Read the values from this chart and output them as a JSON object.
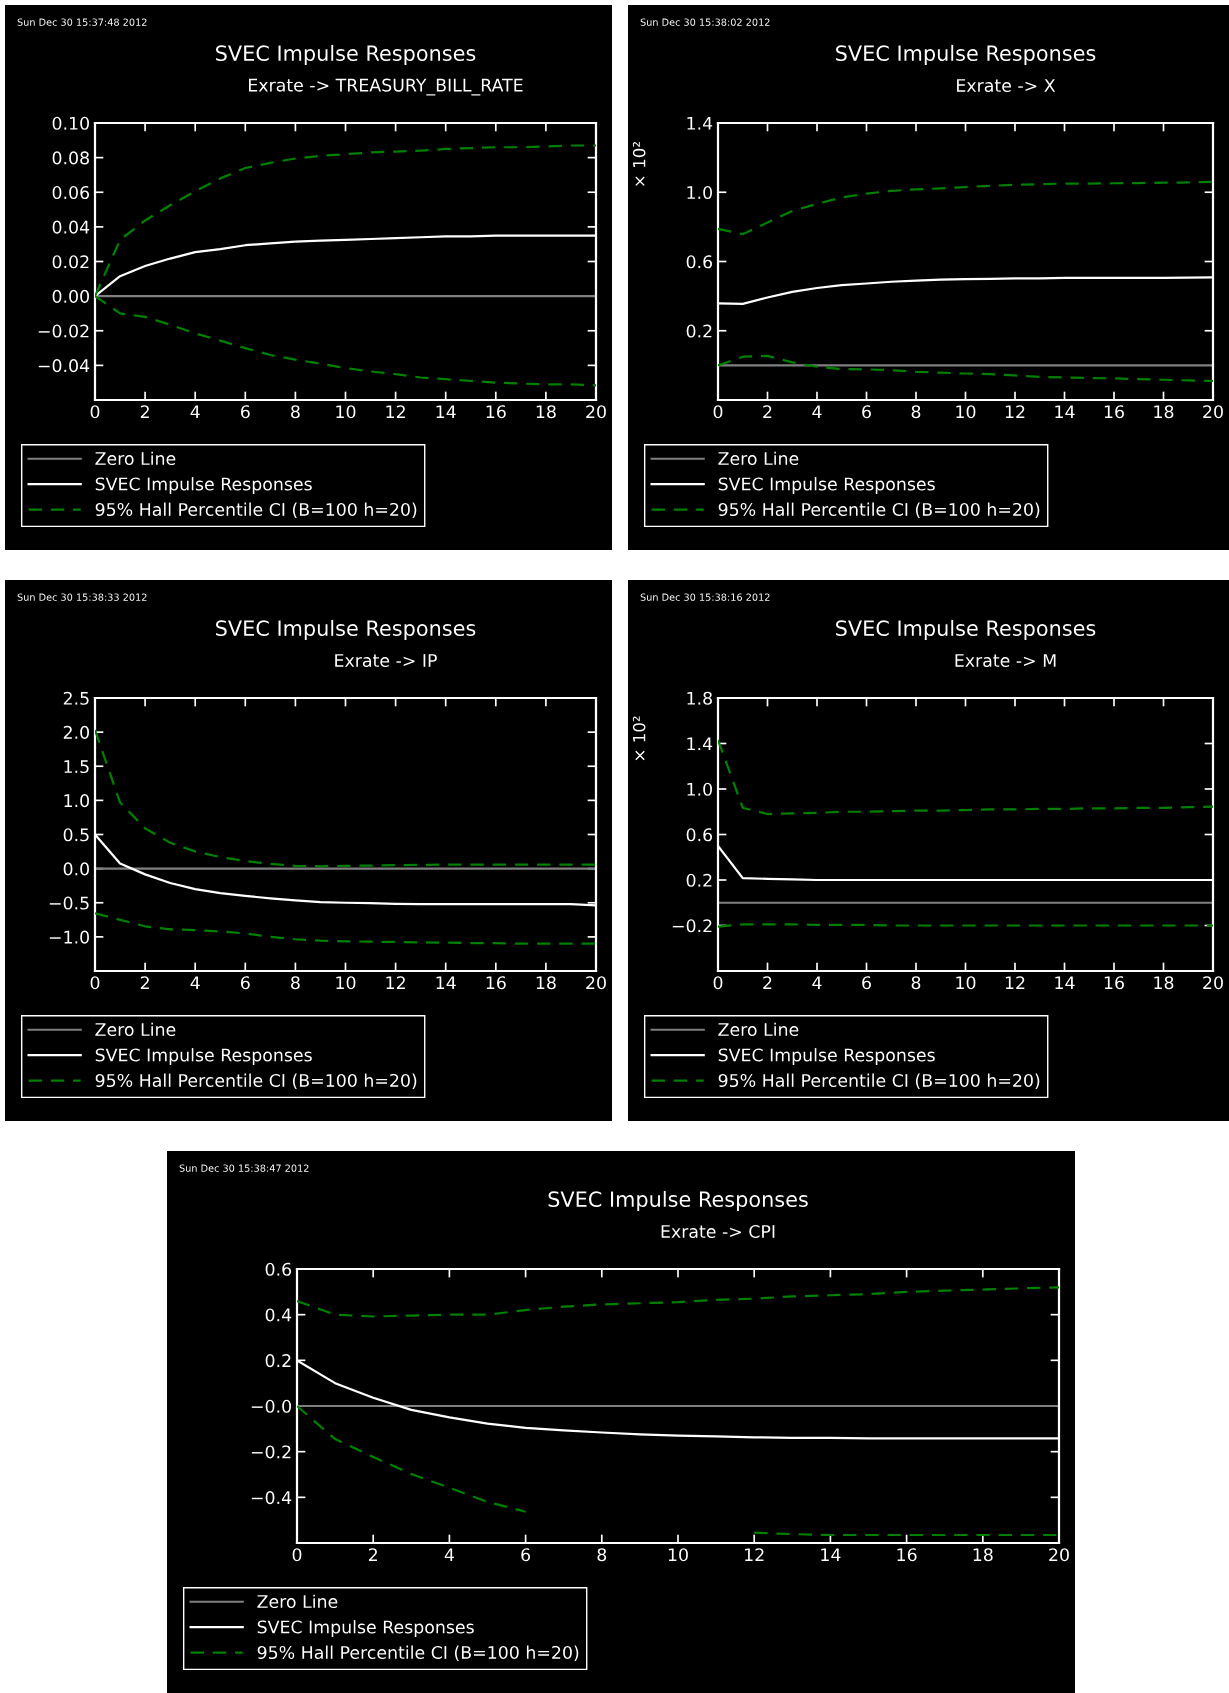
{
  "chart_data": [
    {
      "type": "line",
      "title": "SVEC Impulse Responses",
      "subtitle": "Exrate -> TREASURY_BILL_RATE",
      "annotations": [
        "Sun Dec 30 15:37:48 2012"
      ],
      "x": [
        0,
        1,
        2,
        3,
        4,
        5,
        6,
        7,
        8,
        9,
        10,
        11,
        12,
        13,
        14,
        15,
        16,
        17,
        18,
        19,
        20
      ],
      "series": [
        {
          "name": "SVEC Impulse Responses",
          "color": "#ffffff",
          "line_style": "solid",
          "values": [
            0,
            0.0115,
            0.0174,
            0.0217,
            0.0254,
            0.0272,
            0.0294,
            0.0305,
            0.0315,
            0.032,
            0.0325,
            0.033,
            0.0335,
            0.034,
            0.0345,
            0.0345,
            0.035,
            0.035,
            0.035,
            0.035,
            0.035
          ]
        },
        {
          "name": "95% Hall Percentile CI (B=100 h=20)",
          "color": "#008000",
          "line_style": "dashed",
          "values": [
            0,
            0.0325,
            0.0437,
            0.0525,
            0.0606,
            0.068,
            0.074,
            0.077,
            0.0795,
            0.081,
            0.082,
            0.083,
            0.0835,
            0.084,
            0.085,
            0.0855,
            0.086,
            0.086,
            0.0865,
            0.087,
            0.087
          ]
        },
        {
          "color": "#008000",
          "line_style": "dashed",
          "values": [
            0,
            -0.01,
            -0.012,
            -0.0165,
            -0.0215,
            -0.0257,
            -0.03,
            -0.034,
            -0.0367,
            -0.039,
            -0.0415,
            -0.0435,
            -0.045,
            -0.047,
            -0.048,
            -0.049,
            -0.05,
            -0.0505,
            -0.051,
            -0.051,
            -0.0515
          ]
        }
      ],
      "ref_lines": [
        {
          "axis": "y",
          "value": 0,
          "label": "Zero Line",
          "color": "#808080",
          "line_style": "solid"
        }
      ],
      "xlim": [
        0,
        20
      ],
      "ylim": [
        -0.06,
        0.1
      ],
      "xticks": [
        0,
        2,
        4,
        6,
        8,
        10,
        12,
        14,
        16,
        18,
        20
      ],
      "yticks": [
        {
          "value": -0.04,
          "label": "−0.04"
        },
        {
          "value": -0.02,
          "label": "−0.02"
        },
        {
          "value": 0,
          "label": "0.00"
        },
        {
          "value": 0.02,
          "label": "0.02"
        },
        {
          "value": 0.04,
          "label": "0.04"
        },
        {
          "value": 0.06,
          "label": "0.06"
        },
        {
          "value": 0.08,
          "label": "0.08"
        },
        {
          "value": 0.1,
          "label": "0.10"
        }
      ],
      "legend": "bottom"
    },
    {
      "type": "line",
      "title": "SVEC Impulse Responses",
      "subtitle": "Exrate -> X",
      "ylabel": "× 10²",
      "annotations": [
        "Sun Dec 30 15:38:02 2012"
      ],
      "x": [
        0,
        1,
        2,
        3,
        4,
        5,
        6,
        7,
        8,
        9,
        10,
        11,
        12,
        13,
        14,
        15,
        16,
        17,
        18,
        19,
        20
      ],
      "series": [
        {
          "name": "SVEC Impulse Responses",
          "color": "#ffffff",
          "line_style": "solid",
          "values": [
            0.358,
            0.355,
            0.392,
            0.425,
            0.447,
            0.463,
            0.473,
            0.483,
            0.49,
            0.495,
            0.498,
            0.5,
            0.502,
            0.503,
            0.505,
            0.505,
            0.505,
            0.505,
            0.505,
            0.507,
            0.508
          ]
        },
        {
          "name": "95% Hall Percentile CI (B=100 h=20)",
          "color": "#008000",
          "line_style": "dashed",
          "values": [
            0.788,
            0.758,
            0.825,
            0.892,
            0.933,
            0.97,
            0.992,
            1.008,
            1.017,
            1.022,
            1.03,
            1.037,
            1.043,
            1.047,
            1.05,
            1.05,
            1.052,
            1.053,
            1.055,
            1.057,
            1.06
          ]
        },
        {
          "color": "#008000",
          "line_style": "dashed",
          "values": [
            0,
            0.05,
            0.055,
            0.017,
            -0.008,
            -0.022,
            -0.023,
            -0.028,
            -0.037,
            -0.042,
            -0.047,
            -0.05,
            -0.058,
            -0.067,
            -0.07,
            -0.073,
            -0.075,
            -0.08,
            -0.083,
            -0.087,
            -0.09
          ]
        }
      ],
      "ref_lines": [
        {
          "axis": "y",
          "value": 0,
          "label": "Zero Line",
          "color": "#808080",
          "line_style": "solid"
        }
      ],
      "xlim": [
        0,
        20
      ],
      "ylim": [
        -0.2,
        1.4
      ],
      "xticks": [
        0,
        2,
        4,
        6,
        8,
        10,
        12,
        14,
        16,
        18,
        20
      ],
      "yticks": [
        0.2,
        0.6,
        {
          "value": 1.0,
          "label": "1.0"
        },
        1.4
      ],
      "legend": "bottom"
    },
    {
      "type": "line",
      "title": "SVEC Impulse Responses",
      "subtitle": "Exrate -> IP",
      "annotations": [
        "Sun Dec 30 15:38:33 2012"
      ],
      "x": [
        0,
        1,
        2,
        3,
        4,
        5,
        6,
        7,
        8,
        9,
        10,
        11,
        12,
        13,
        14,
        15,
        16,
        17,
        18,
        19,
        20
      ],
      "series": [
        {
          "name": "SVEC Impulse Responses",
          "color": "#ffffff",
          "line_style": "solid",
          "values": [
            0.5,
            0.076,
            -0.084,
            -0.21,
            -0.3,
            -0.36,
            -0.4,
            -0.435,
            -0.465,
            -0.49,
            -0.5,
            -0.505,
            -0.515,
            -0.52,
            -0.52,
            -0.52,
            -0.52,
            -0.52,
            -0.52,
            -0.52,
            -0.54
          ]
        },
        {
          "name": "95% Hall Percentile CI (B=100 h=20)",
          "color": "#008000",
          "line_style": "dashed",
          "values": [
            2.03,
            0.97,
            0.59,
            0.38,
            0.25,
            0.17,
            0.11,
            0.07,
            0.04,
            0.035,
            0.04,
            0.045,
            0.05,
            0.055,
            0.06,
            0.06,
            0.06,
            0.06,
            0.06,
            0.06,
            0.06
          ]
        },
        {
          "color": "#008000",
          "line_style": "dashed",
          "values": [
            -0.655,
            -0.75,
            -0.845,
            -0.89,
            -0.9,
            -0.92,
            -0.95,
            -1.0,
            -1.035,
            -1.055,
            -1.065,
            -1.07,
            -1.075,
            -1.08,
            -1.085,
            -1.09,
            -1.09,
            -1.1,
            -1.1,
            -1.1,
            -1.1
          ]
        }
      ],
      "ref_lines": [
        {
          "axis": "y",
          "value": 0,
          "label": "Zero Line",
          "color": "#808080",
          "line_style": "solid"
        }
      ],
      "xlim": [
        0,
        20
      ],
      "ylim": [
        -1.5,
        2.5
      ],
      "xticks": [
        0,
        2,
        4,
        6,
        8,
        10,
        12,
        14,
        16,
        18,
        20
      ],
      "yticks": [
        {
          "value": -1.0,
          "label": "−1.0"
        },
        {
          "value": -0.5,
          "label": "−0.5"
        },
        {
          "value": 0,
          "label": "0.0"
        },
        0.5,
        {
          "value": 1.0,
          "label": "1.0"
        },
        1.5,
        {
          "value": 2.0,
          "label": "2.0"
        },
        2.5
      ],
      "legend": "bottom"
    },
    {
      "type": "line",
      "title": "SVEC Impulse Responses",
      "subtitle": "Exrate -> M",
      "ylabel": "× 10²",
      "annotations": [
        "Sun Dec 30 15:38:16 2012"
      ],
      "x": [
        0,
        1,
        2,
        3,
        4,
        5,
        6,
        7,
        8,
        9,
        10,
        11,
        12,
        13,
        14,
        15,
        16,
        17,
        18,
        19,
        20
      ],
      "series": [
        {
          "name": "SVEC Impulse Responses",
          "color": "#ffffff",
          "line_style": "solid",
          "values": [
            0.5,
            0.217,
            0.21,
            0.205,
            0.2,
            0.2,
            0.2,
            0.2,
            0.2,
            0.2,
            0.2,
            0.2,
            0.2,
            0.2,
            0.2,
            0.2,
            0.2,
            0.2,
            0.2,
            0.2,
            0.2
          ]
        },
        {
          "name": "95% Hall Percentile CI (B=100 h=20)",
          "color": "#008000",
          "line_style": "dashed",
          "values": [
            1.43,
            0.835,
            0.78,
            0.785,
            0.79,
            0.8,
            0.8,
            0.805,
            0.81,
            0.81,
            0.815,
            0.82,
            0.82,
            0.825,
            0.825,
            0.83,
            0.83,
            0.835,
            0.835,
            0.84,
            0.845
          ]
        },
        {
          "color": "#008000",
          "line_style": "dashed",
          "values": [
            -0.21,
            -0.19,
            -0.19,
            -0.19,
            -0.195,
            -0.195,
            -0.195,
            -0.2,
            -0.2,
            -0.2,
            -0.2,
            -0.2,
            -0.2,
            -0.2,
            -0.2,
            -0.2,
            -0.2,
            -0.2,
            -0.2,
            -0.2,
            -0.2
          ]
        }
      ],
      "ref_lines": [
        {
          "axis": "y",
          "value": 0,
          "label": "Zero Line",
          "color": "#808080",
          "line_style": "solid"
        }
      ],
      "xlim": [
        0,
        20
      ],
      "ylim": [
        -0.6,
        1.8
      ],
      "xticks": [
        0,
        2,
        4,
        6,
        8,
        10,
        12,
        14,
        16,
        18,
        20
      ],
      "yticks": [
        {
          "value": -0.2,
          "label": "−0.2"
        },
        0.2,
        0.6,
        {
          "value": 1.0,
          "label": "1.0"
        },
        1.4,
        1.8
      ],
      "legend": "bottom"
    },
    {
      "type": "line",
      "title": "SVEC Impulse Responses",
      "subtitle": "Exrate -> CPI",
      "annotations": [
        "Sun Dec 30 15:38:47 2012"
      ],
      "x": [
        0,
        1,
        2,
        3,
        4,
        5,
        6,
        7,
        8,
        9,
        10,
        11,
        12,
        13,
        14,
        15,
        16,
        17,
        18,
        19,
        20
      ],
      "series": [
        {
          "name": "SVEC Impulse Responses",
          "color": "#ffffff",
          "line_style": "solid",
          "values": [
            0.2,
            0.1,
            0.036,
            -0.017,
            -0.05,
            -0.077,
            -0.096,
            -0.107,
            -0.116,
            -0.124,
            -0.13,
            -0.133,
            -0.137,
            -0.14,
            -0.14,
            -0.142,
            -0.142,
            -0.142,
            -0.142,
            -0.142,
            -0.142
          ]
        },
        {
          "name": "95% Hall Percentile CI (B=100 h=20)",
          "color": "#008000",
          "line_style": "dashed",
          "values": [
            0.46,
            0.4,
            0.392,
            0.396,
            0.4,
            0.4,
            0.42,
            0.435,
            0.445,
            0.45,
            0.455,
            0.465,
            0.47,
            0.48,
            0.485,
            0.49,
            0.5,
            0.505,
            0.51,
            0.515,
            0.52
          ]
        },
        {
          "color": "#008000",
          "line_style": "dashed",
          "values": [
            0,
            -0.145,
            -0.223,
            -0.298,
            -0.358,
            -0.42,
            -0.463,
            null,
            null,
            null,
            null,
            null,
            -0.555,
            -0.561,
            -0.565,
            -0.565,
            -0.565,
            -0.565,
            -0.565,
            -0.565,
            -0.565
          ]
        }
      ],
      "ref_lines": [
        {
          "axis": "y",
          "value": 0,
          "label": "Zero Line",
          "color": "#808080",
          "line_style": "solid"
        }
      ],
      "xlim": [
        0,
        20
      ],
      "ylim": [
        -0.6,
        0.6
      ],
      "xticks": [
        0,
        2,
        4,
        6,
        8,
        10,
        12,
        14,
        16,
        18,
        20
      ],
      "yticks": [
        {
          "value": -0.4,
          "label": "−0.4"
        },
        {
          "value": -0.2,
          "label": "−0.2"
        },
        {
          "value": 0,
          "label": "−0.0"
        },
        0.2,
        0.4,
        0.6
      ],
      "legend": "bottom"
    }
  ]
}
